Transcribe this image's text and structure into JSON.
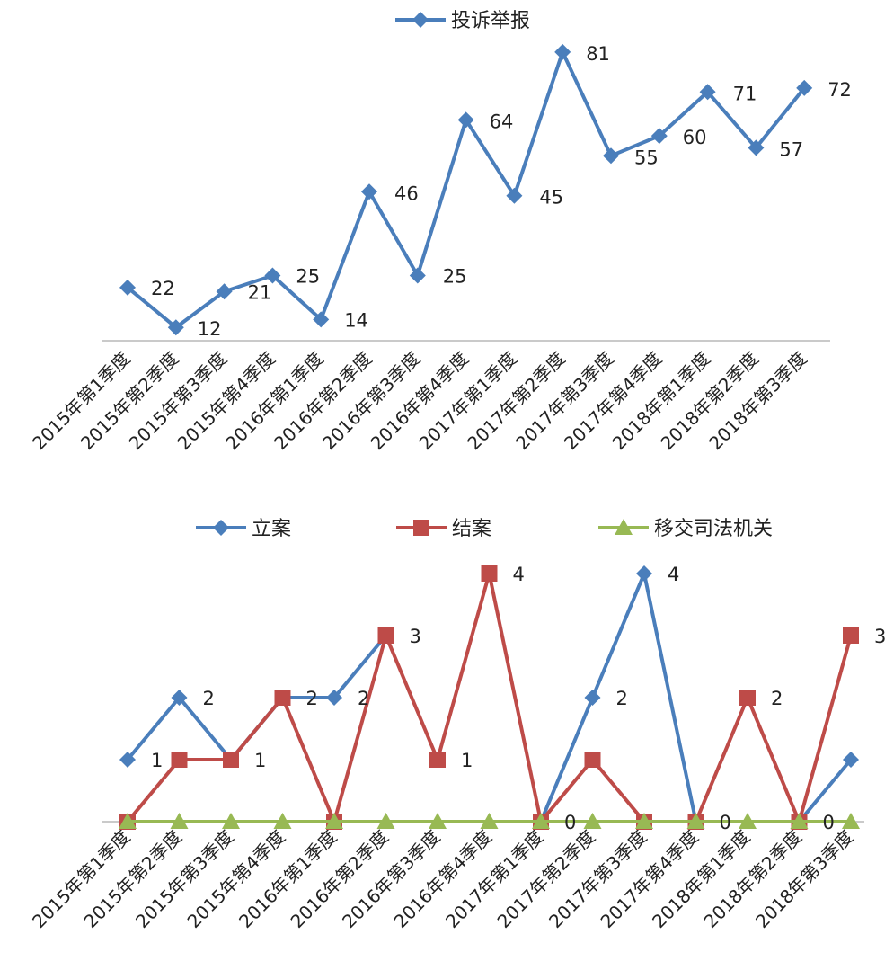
{
  "chart_data": [
    {
      "type": "line",
      "title": "",
      "xlabel": "",
      "ylabel": "",
      "legend_position": "top",
      "grid": false,
      "categories": [
        "2015年第1季度",
        "2015年第2季度",
        "2015年第3季度",
        "2015年第4季度",
        "2016年第1季度",
        "2016年第2季度",
        "2016年第3季度",
        "2016年第4季度",
        "2017年第1季度",
        "2017年第2季度",
        "2017年第3季度",
        "2017年第4季度",
        "2018年第1季度",
        "2018年第2季度",
        "2018年第3季度"
      ],
      "series": [
        {
          "name": "投诉举报",
          "color": "#4a7ebb",
          "marker": "diamond",
          "values": [
            22,
            12,
            21,
            25,
            14,
            46,
            25,
            64,
            45,
            81,
            55,
            60,
            71,
            57,
            72
          ]
        }
      ],
      "ylim": [
        0,
        90
      ]
    },
    {
      "type": "line",
      "title": "",
      "xlabel": "",
      "ylabel": "",
      "legend_position": "top",
      "grid": false,
      "categories": [
        "2015年第1季度",
        "2015年第2季度",
        "2015年第3季度",
        "2015年第4季度",
        "2016年第1季度",
        "2016年第2季度",
        "2016年第3季度",
        "2016年第4季度",
        "2017年第1季度",
        "2017年第2季度",
        "2017年第3季度",
        "2017年第4季度",
        "2018年第1季度",
        "2018年第2季度",
        "2018年第3季度"
      ],
      "series": [
        {
          "name": "立案",
          "color": "#4a7ebb",
          "marker": "diamond",
          "values": [
            1,
            2,
            1,
            2,
            2,
            3,
            null,
            null,
            0,
            2,
            4,
            0,
            null,
            0,
            1
          ]
        },
        {
          "name": "结案",
          "color": "#be4b48",
          "marker": "square",
          "values": [
            0,
            1,
            1,
            2,
            0,
            3,
            1,
            4,
            0,
            1,
            0,
            0,
            2,
            0,
            3
          ]
        },
        {
          "name": "移交司法机关",
          "color": "#98b954",
          "marker": "triangle",
          "values": [
            0,
            0,
            0,
            0,
            0,
            0,
            0,
            0,
            0,
            0,
            0,
            0,
            0,
            0,
            0
          ]
        }
      ],
      "ylim": [
        0,
        4
      ]
    }
  ]
}
